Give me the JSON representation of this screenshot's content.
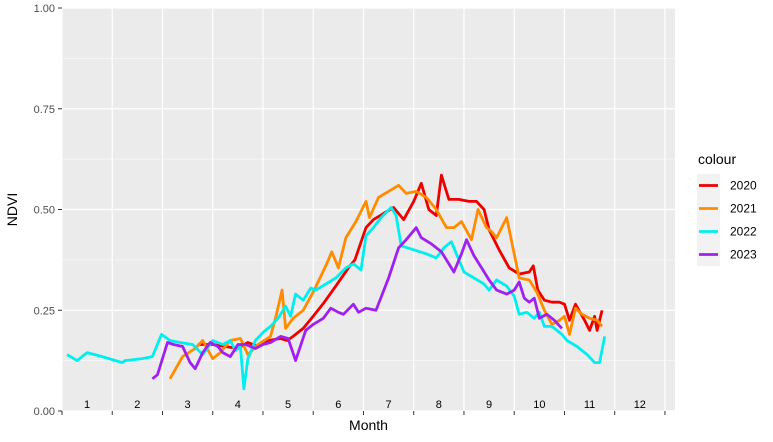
{
  "chart_data": {
    "type": "line",
    "title": "",
    "xlabel": "Month",
    "ylabel": "NDVI",
    "xlim": [
      0.5,
      12.7
    ],
    "ylim": [
      0,
      1
    ],
    "month_labels": [
      "1",
      "2",
      "3",
      "4",
      "5",
      "6",
      "7",
      "8",
      "9",
      "10",
      "11",
      "12"
    ],
    "y_ticks": [
      0,
      0.25,
      0.5,
      0.75,
      1
    ],
    "y_tick_labels": [
      "0.00",
      "0.25",
      "0.50",
      "0.75",
      "1.00"
    ],
    "grid": true,
    "legend": {
      "title": "colour",
      "placement": "right"
    },
    "colors": {
      "2020": "#ee0000",
      "2021": "#ff8c00",
      "2022": "#00eeee",
      "2023": "#a020f0"
    },
    "series": [
      {
        "name": "2020",
        "points": [
          [
            3.2,
            0.165
          ],
          [
            3.5,
            0.165
          ],
          [
            4.0,
            0.155
          ],
          [
            4.2,
            0.17
          ],
          [
            4.4,
            0.16
          ],
          [
            4.6,
            0.175
          ],
          [
            4.85,
            0.18
          ],
          [
            4.98,
            0.175
          ],
          [
            5.1,
            0.185
          ],
          [
            5.3,
            0.205
          ],
          [
            5.5,
            0.235
          ],
          [
            5.72,
            0.27
          ],
          [
            5.95,
            0.31
          ],
          [
            6.2,
            0.355
          ],
          [
            6.33,
            0.375
          ],
          [
            6.55,
            0.455
          ],
          [
            6.7,
            0.475
          ],
          [
            6.9,
            0.49
          ],
          [
            7.1,
            0.505
          ],
          [
            7.3,
            0.475
          ],
          [
            7.5,
            0.52
          ],
          [
            7.65,
            0.565
          ],
          [
            7.8,
            0.5
          ],
          [
            7.95,
            0.485
          ],
          [
            8.05,
            0.585
          ],
          [
            8.2,
            0.525
          ],
          [
            8.4,
            0.525
          ],
          [
            8.6,
            0.52
          ],
          [
            8.75,
            0.52
          ],
          [
            8.9,
            0.5
          ],
          [
            9.0,
            0.45
          ],
          [
            9.2,
            0.4
          ],
          [
            9.4,
            0.355
          ],
          [
            9.6,
            0.34
          ],
          [
            9.8,
            0.345
          ],
          [
            9.88,
            0.36
          ],
          [
            9.97,
            0.3
          ],
          [
            10.1,
            0.275
          ],
          [
            10.25,
            0.27
          ],
          [
            10.4,
            0.27
          ],
          [
            10.5,
            0.265
          ],
          [
            10.6,
            0.225
          ],
          [
            10.72,
            0.265
          ],
          [
            10.9,
            0.225
          ],
          [
            11.0,
            0.2
          ],
          [
            11.1,
            0.235
          ],
          [
            11.15,
            0.2
          ],
          [
            11.25,
            0.25
          ]
        ]
      },
      {
        "name": "2021",
        "points": [
          [
            2.65,
            0.08
          ],
          [
            2.9,
            0.135
          ],
          [
            3.15,
            0.155
          ],
          [
            3.3,
            0.175
          ],
          [
            3.5,
            0.13
          ],
          [
            3.65,
            0.145
          ],
          [
            3.85,
            0.175
          ],
          [
            4.05,
            0.18
          ],
          [
            4.2,
            0.14
          ],
          [
            4.4,
            0.165
          ],
          [
            4.65,
            0.185
          ],
          [
            4.75,
            0.23
          ],
          [
            4.88,
            0.3
          ],
          [
            4.95,
            0.205
          ],
          [
            5.1,
            0.23
          ],
          [
            5.3,
            0.25
          ],
          [
            5.5,
            0.295
          ],
          [
            5.75,
            0.36
          ],
          [
            5.87,
            0.395
          ],
          [
            6.0,
            0.355
          ],
          [
            6.15,
            0.43
          ],
          [
            6.35,
            0.47
          ],
          [
            6.55,
            0.52
          ],
          [
            6.62,
            0.48
          ],
          [
            6.8,
            0.53
          ],
          [
            7.0,
            0.545
          ],
          [
            7.2,
            0.56
          ],
          [
            7.35,
            0.54
          ],
          [
            7.55,
            0.545
          ],
          [
            7.75,
            0.53
          ],
          [
            7.95,
            0.5
          ],
          [
            8.15,
            0.455
          ],
          [
            8.3,
            0.455
          ],
          [
            8.45,
            0.47
          ],
          [
            8.65,
            0.425
          ],
          [
            8.78,
            0.5
          ],
          [
            8.95,
            0.455
          ],
          [
            9.05,
            0.445
          ],
          [
            9.15,
            0.43
          ],
          [
            9.35,
            0.48
          ],
          [
            9.5,
            0.39
          ],
          [
            9.6,
            0.33
          ],
          [
            9.8,
            0.325
          ],
          [
            9.95,
            0.295
          ],
          [
            10.1,
            0.25
          ],
          [
            10.25,
            0.215
          ],
          [
            10.4,
            0.225
          ],
          [
            10.5,
            0.235
          ],
          [
            10.6,
            0.19
          ],
          [
            10.72,
            0.255
          ],
          [
            10.85,
            0.24
          ],
          [
            11.0,
            0.23
          ],
          [
            11.15,
            0.225
          ],
          [
            11.25,
            0.21
          ]
        ]
      },
      {
        "name": "2022",
        "points": [
          [
            0.6,
            0.14
          ],
          [
            0.8,
            0.125
          ],
          [
            1.0,
            0.145
          ],
          [
            1.3,
            0.135
          ],
          [
            1.7,
            0.12
          ],
          [
            1.75,
            0.125
          ],
          [
            2.1,
            0.13
          ],
          [
            2.3,
            0.135
          ],
          [
            2.48,
            0.19
          ],
          [
            2.65,
            0.175
          ],
          [
            2.85,
            0.17
          ],
          [
            3.1,
            0.165
          ],
          [
            3.3,
            0.14
          ],
          [
            3.5,
            0.175
          ],
          [
            3.7,
            0.165
          ],
          [
            3.85,
            0.175
          ],
          [
            3.95,
            0.15
          ],
          [
            4.05,
            0.16
          ],
          [
            4.12,
            0.055
          ],
          [
            4.2,
            0.13
          ],
          [
            4.35,
            0.175
          ],
          [
            4.5,
            0.195
          ],
          [
            4.65,
            0.21
          ],
          [
            4.8,
            0.23
          ],
          [
            4.95,
            0.26
          ],
          [
            5.05,
            0.235
          ],
          [
            5.15,
            0.29
          ],
          [
            5.3,
            0.275
          ],
          [
            5.45,
            0.305
          ],
          [
            5.55,
            0.3
          ],
          [
            5.75,
            0.315
          ],
          [
            5.95,
            0.33
          ],
          [
            6.15,
            0.355
          ],
          [
            6.3,
            0.365
          ],
          [
            6.45,
            0.35
          ],
          [
            6.55,
            0.435
          ],
          [
            6.7,
            0.455
          ],
          [
            6.85,
            0.48
          ],
          [
            7.05,
            0.505
          ],
          [
            7.15,
            0.485
          ],
          [
            7.25,
            0.41
          ],
          [
            7.5,
            0.4
          ],
          [
            7.75,
            0.39
          ],
          [
            7.95,
            0.38
          ],
          [
            8.1,
            0.405
          ],
          [
            8.25,
            0.42
          ],
          [
            8.4,
            0.375
          ],
          [
            8.5,
            0.345
          ],
          [
            8.7,
            0.33
          ],
          [
            8.9,
            0.315
          ],
          [
            9.0,
            0.3
          ],
          [
            9.15,
            0.325
          ],
          [
            9.35,
            0.31
          ],
          [
            9.5,
            0.285
          ],
          [
            9.6,
            0.24
          ],
          [
            9.75,
            0.245
          ],
          [
            9.9,
            0.23
          ],
          [
            10.0,
            0.245
          ],
          [
            10.1,
            0.21
          ],
          [
            10.25,
            0.21
          ],
          [
            10.45,
            0.19
          ],
          [
            10.55,
            0.175
          ],
          [
            10.75,
            0.16
          ],
          [
            10.95,
            0.14
          ],
          [
            11.1,
            0.12
          ],
          [
            11.2,
            0.12
          ],
          [
            11.3,
            0.185
          ]
        ]
      },
      {
        "name": "2023",
        "points": [
          [
            2.3,
            0.08
          ],
          [
            2.4,
            0.09
          ],
          [
            2.5,
            0.13
          ],
          [
            2.6,
            0.17
          ],
          [
            2.72,
            0.165
          ],
          [
            2.9,
            0.16
          ],
          [
            3.05,
            0.12
          ],
          [
            3.15,
            0.105
          ],
          [
            3.3,
            0.145
          ],
          [
            3.45,
            0.17
          ],
          [
            3.6,
            0.16
          ],
          [
            3.7,
            0.145
          ],
          [
            3.85,
            0.135
          ],
          [
            4.0,
            0.165
          ],
          [
            4.15,
            0.165
          ],
          [
            4.35,
            0.155
          ],
          [
            4.5,
            0.165
          ],
          [
            4.65,
            0.17
          ],
          [
            4.85,
            0.185
          ],
          [
            5.0,
            0.18
          ],
          [
            5.15,
            0.125
          ],
          [
            5.35,
            0.2
          ],
          [
            5.5,
            0.215
          ],
          [
            5.7,
            0.23
          ],
          [
            5.85,
            0.255
          ],
          [
            6.0,
            0.245
          ],
          [
            6.1,
            0.24
          ],
          [
            6.3,
            0.265
          ],
          [
            6.4,
            0.245
          ],
          [
            6.55,
            0.255
          ],
          [
            6.75,
            0.25
          ],
          [
            7.0,
            0.33
          ],
          [
            7.2,
            0.405
          ],
          [
            7.35,
            0.425
          ],
          [
            7.55,
            0.455
          ],
          [
            7.65,
            0.43
          ],
          [
            7.85,
            0.415
          ],
          [
            8.05,
            0.395
          ],
          [
            8.2,
            0.365
          ],
          [
            8.3,
            0.345
          ],
          [
            8.45,
            0.39
          ],
          [
            8.55,
            0.425
          ],
          [
            8.7,
            0.385
          ],
          [
            8.85,
            0.355
          ],
          [
            9.0,
            0.325
          ],
          [
            9.15,
            0.3
          ],
          [
            9.35,
            0.29
          ],
          [
            9.5,
            0.3
          ],
          [
            9.6,
            0.32
          ],
          [
            9.7,
            0.28
          ],
          [
            9.8,
            0.27
          ],
          [
            9.9,
            0.28
          ],
          [
            10.0,
            0.23
          ],
          [
            10.15,
            0.24
          ],
          [
            10.3,
            0.225
          ],
          [
            10.45,
            0.205
          ]
        ]
      }
    ]
  }
}
